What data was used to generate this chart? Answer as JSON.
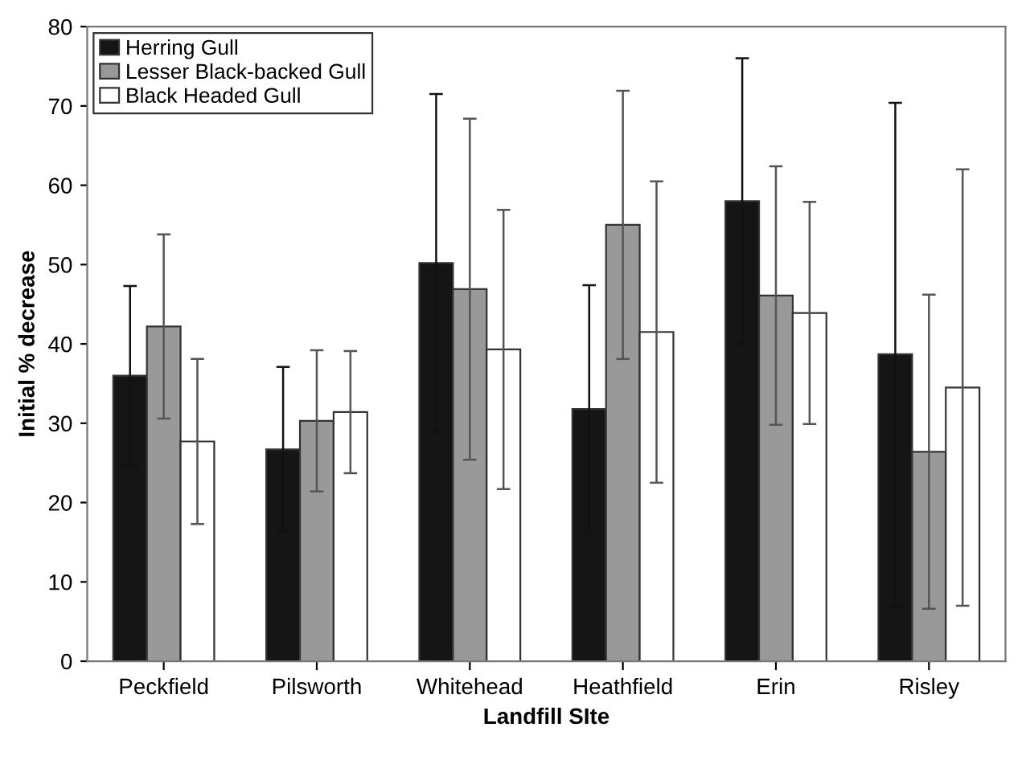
{
  "chart_data": {
    "type": "bar",
    "xlabel": "Landfill SIte",
    "ylabel": "Initial % decrease",
    "categories": [
      "Peckfield",
      "Pilsworth",
      "Whitehead",
      "Heathfield",
      "Erin",
      "Risley"
    ],
    "series": [
      {
        "name": "Herring Gull",
        "color": "#151515",
        "values": [
          36.0,
          26.7,
          50.2,
          31.8,
          58.0,
          38.7
        ],
        "errors": [
          11.3,
          10.4,
          21.3,
          15.6,
          18.0,
          31.7
        ]
      },
      {
        "name": "Lesser Black-backed Gull",
        "color": "#999999",
        "values": [
          42.2,
          30.3,
          46.9,
          55.0,
          46.1,
          26.4
        ],
        "errors": [
          11.6,
          8.9,
          21.5,
          16.9,
          16.3,
          19.8
        ]
      },
      {
        "name": "Black Headed Gull",
        "color": "#ffffff",
        "values": [
          27.7,
          31.4,
          39.3,
          41.5,
          43.9,
          34.5
        ],
        "errors": [
          10.4,
          7.7,
          17.6,
          19.0,
          14.0,
          27.5
        ]
      }
    ],
    "ylim": [
      0,
      80
    ],
    "yticks": [
      0,
      10,
      20,
      30,
      40,
      50,
      60,
      70,
      80
    ],
    "grid": false,
    "legend": "top left"
  }
}
